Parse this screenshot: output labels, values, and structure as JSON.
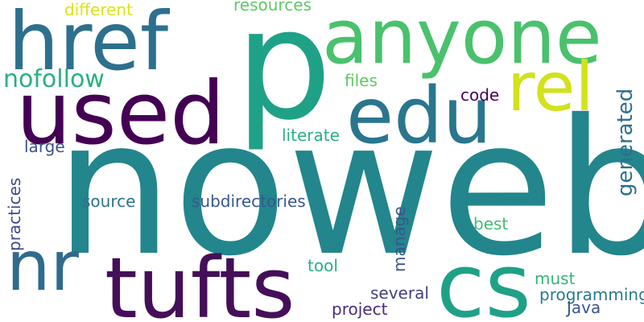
{
  "words": [
    {
      "text": "noweb",
      "color": "#22868c"
    },
    {
      "text": "p",
      "color": "#1fa187"
    },
    {
      "text": "anyone",
      "color": "#4ac16d"
    },
    {
      "text": "href",
      "color": "#2d708e"
    },
    {
      "text": "used",
      "color": "#440154"
    },
    {
      "text": "rel",
      "color": "#d2e21b"
    },
    {
      "text": "edu",
      "color": "#2a768e"
    },
    {
      "text": "cs",
      "color": "#1fa187"
    },
    {
      "text": "tufts",
      "color": "#450f58"
    },
    {
      "text": "nr",
      "color": "#2f6b8e"
    },
    {
      "text": "nofollow",
      "color": "#2ab07f"
    },
    {
      "text": "different",
      "color": "#dde318"
    },
    {
      "text": "resources",
      "color": "#5ec962"
    },
    {
      "text": "files",
      "color": "#5ec962"
    },
    {
      "text": "code",
      "color": "#440154"
    },
    {
      "text": "literate",
      "color": "#2e6f8e"
    },
    {
      "text": "large",
      "color": "#29af7f"
    },
    {
      "text": "source",
      "color": "#3b528b"
    },
    {
      "text": "subdirectories",
      "color": "#3e4989"
    },
    {
      "text": "best",
      "color": "#2c728e"
    },
    {
      "text": "tool",
      "color": "#38588c"
    },
    {
      "text": "must",
      "color": "#40bd72"
    },
    {
      "text": "several",
      "color": "#39558c"
    },
    {
      "text": "programming",
      "color": "#2ab07f"
    },
    {
      "text": "project",
      "color": "#34b679"
    },
    {
      "text": "Java",
      "color": "#433e85"
    },
    {
      "text": "generated",
      "color": "#29798e"
    },
    {
      "text": "practices",
      "color": "#472c7a"
    },
    {
      "text": "manage",
      "color": "#39568c"
    }
  ]
}
